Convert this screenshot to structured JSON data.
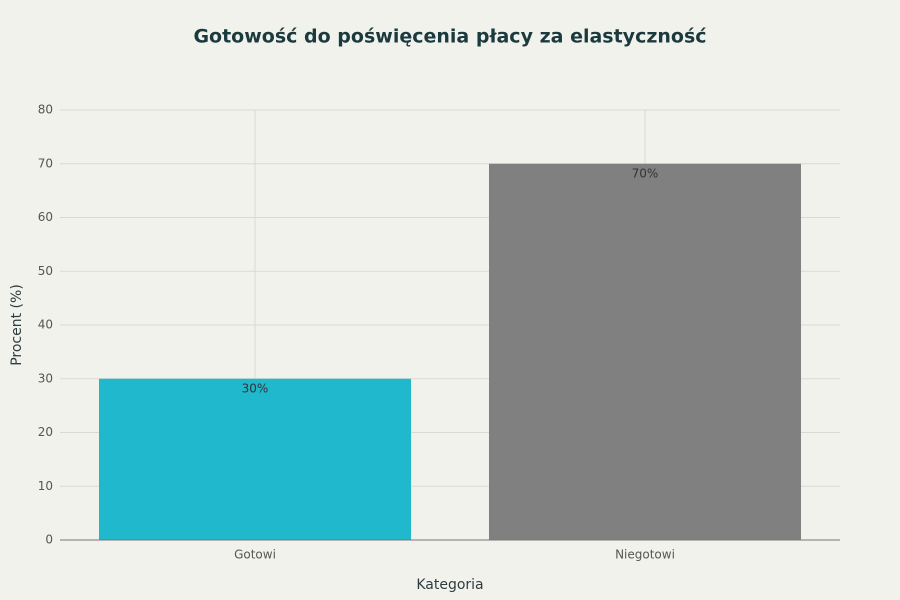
{
  "chart_data": {
    "type": "bar",
    "title": "Gotowość do poświęcenia płacy za elastyczność",
    "x_label": "Kategoria",
    "y_label": "Procent (%)",
    "categories": [
      "Gotowi",
      "Niegotowi"
    ],
    "values": [
      30,
      70
    ],
    "value_labels": [
      "30%",
      "70%"
    ],
    "colors": [
      "#1fb8cd",
      "#808080"
    ],
    "ylim": [
      0,
      80
    ],
    "yticks": [
      0,
      10,
      20,
      30,
      40,
      50,
      60,
      70,
      80
    ],
    "grid": true
  }
}
